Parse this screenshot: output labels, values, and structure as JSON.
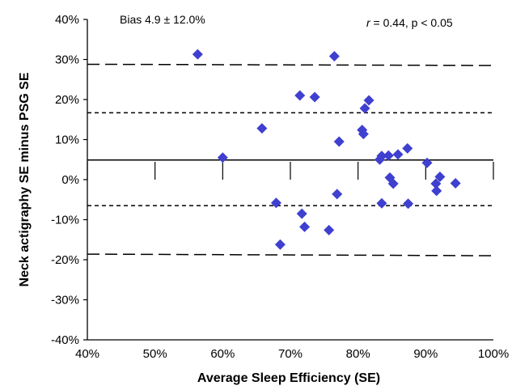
{
  "chart_data": {
    "type": "scatter",
    "title": "",
    "xlabel": "Average Sleep Efficiency (SE)",
    "ylabel": "Neck actigraphy SE minus PSG  SE",
    "xlim": [
      40,
      100
    ],
    "ylim": [
      -40,
      40
    ],
    "x_ticks": [
      "40%",
      "50%",
      "60%",
      "70%",
      "80%",
      "90%",
      "100%"
    ],
    "y_ticks": [
      "40%",
      "30%",
      "20%",
      "10%",
      "0%",
      "-10%",
      "-20%",
      "-30%",
      "-40%"
    ],
    "marker": "diamond",
    "marker_color": "#3f3fd0",
    "points": [
      {
        "x": 56.3,
        "y": 31.3
      },
      {
        "x": 60.0,
        "y": 5.5
      },
      {
        "x": 65.8,
        "y": 12.8
      },
      {
        "x": 67.9,
        "y": -5.8
      },
      {
        "x": 68.5,
        "y": -16.2
      },
      {
        "x": 71.4,
        "y": 21.0
      },
      {
        "x": 71.7,
        "y": -8.5
      },
      {
        "x": 72.1,
        "y": -11.8
      },
      {
        "x": 73.6,
        "y": 20.6
      },
      {
        "x": 75.7,
        "y": -12.6
      },
      {
        "x": 76.5,
        "y": 30.8
      },
      {
        "x": 76.9,
        "y": -3.6
      },
      {
        "x": 77.2,
        "y": 9.5
      },
      {
        "x": 80.6,
        "y": 12.4
      },
      {
        "x": 80.8,
        "y": 11.4
      },
      {
        "x": 81.0,
        "y": 17.8
      },
      {
        "x": 81.6,
        "y": 19.8
      },
      {
        "x": 83.2,
        "y": 5.0
      },
      {
        "x": 83.5,
        "y": 5.9
      },
      {
        "x": 83.5,
        "y": -5.9
      },
      {
        "x": 84.5,
        "y": 6.0
      },
      {
        "x": 84.7,
        "y": 0.5
      },
      {
        "x": 85.2,
        "y": -1.0
      },
      {
        "x": 85.9,
        "y": 6.3
      },
      {
        "x": 87.3,
        "y": 7.8
      },
      {
        "x": 87.4,
        "y": -6.0
      },
      {
        "x": 90.2,
        "y": 4.2
      },
      {
        "x": 91.5,
        "y": -1.0
      },
      {
        "x": 91.6,
        "y": -2.8
      },
      {
        "x": 92.1,
        "y": 0.7
      },
      {
        "x": 94.4,
        "y": -0.9
      }
    ],
    "reference_lines": [
      {
        "y": 4.9,
        "style": "solid"
      },
      {
        "y": 16.7,
        "style": "short-dash"
      },
      {
        "y": -6.5,
        "style": "short-dash"
      },
      {
        "y": 28.8,
        "style": "long-dash",
        "y_end": 28.5
      },
      {
        "y": -18.6,
        "style": "long-dash",
        "y_end": -19.0
      }
    ],
    "annotations": {
      "bias": "Bias 4.9 ± 12.0%",
      "stats_r": "r",
      "stats_rest": " = 0.44, p < 0.05"
    },
    "grid": false
  }
}
